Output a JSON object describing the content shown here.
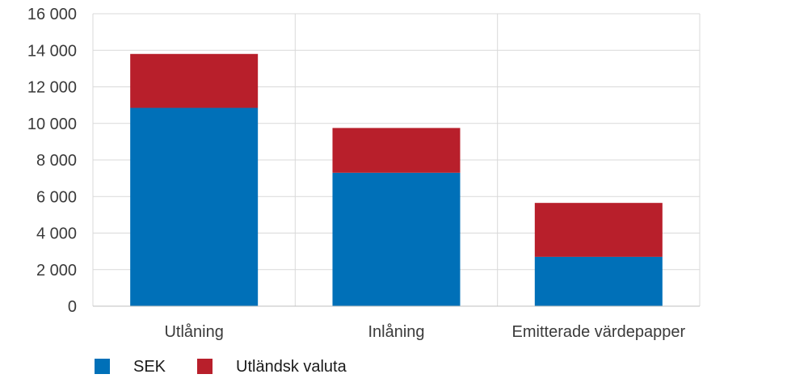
{
  "chart_data": {
    "type": "bar",
    "stacked": true,
    "categories": [
      "Utlåning",
      "Inlåning",
      "Emitterade värdepapper"
    ],
    "series": [
      {
        "name": "SEK",
        "color": "#0070b8",
        "values": [
          10850,
          7300,
          2700
        ]
      },
      {
        "name": "Utländsk valuta",
        "color": "#b81f2b",
        "values": [
          2950,
          2450,
          2950
        ]
      }
    ],
    "ylim": [
      0,
      16000
    ],
    "yticks": [
      0,
      2000,
      4000,
      6000,
      8000,
      10000,
      12000,
      14000,
      16000
    ],
    "ytick_labels": [
      "0",
      "2 000",
      "4 000",
      "6 000",
      "8 000",
      "10 000",
      "12 000",
      "14 000",
      "16 000"
    ],
    "title": "",
    "xlabel": "",
    "ylabel": "",
    "grid": true,
    "legend_position": "bottom-left"
  }
}
